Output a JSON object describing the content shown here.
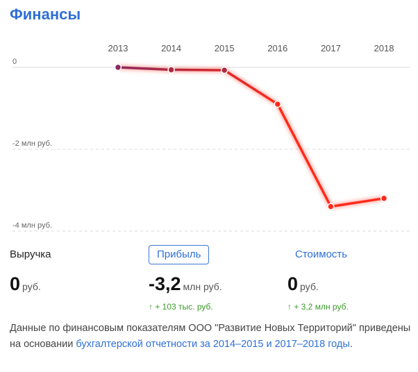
{
  "header": {
    "title": "Финансы"
  },
  "chart_data": {
    "type": "line",
    "x": [
      "2013",
      "2014",
      "2015",
      "2016",
      "2017",
      "2018"
    ],
    "values": [
      0,
      -0.06,
      -0.07,
      -0.9,
      -3.4,
      -3.2
    ],
    "ytick_labels": [
      "0",
      "-2 млн руб.",
      "-4 млн руб."
    ],
    "ytick_values": [
      0,
      -2,
      -4
    ],
    "ylim": [
      -4,
      0
    ],
    "grid": "dashed-horizontal",
    "line_colors": [
      "#8a2a5e",
      "#ff2a1a"
    ]
  },
  "metrics": [
    {
      "label": "Выручка",
      "value": "0",
      "unit": "руб.",
      "change": ""
    },
    {
      "label": "Прибыль",
      "value": "-3,2",
      "unit": "млн руб.",
      "change": "↑ + 103 тыс. руб."
    },
    {
      "label": "Стоимость",
      "value": "0",
      "unit": "руб.",
      "change": "↑ + 3,2 млн руб."
    }
  ],
  "footnote": {
    "text": "Данные по финансовым показателям ООО \"Развитие Новых Территорий\" приведены на основании ",
    "link": "бухгалтерской отчетности за 2014–2015 и 2017–2018 годы",
    "end": "."
  }
}
